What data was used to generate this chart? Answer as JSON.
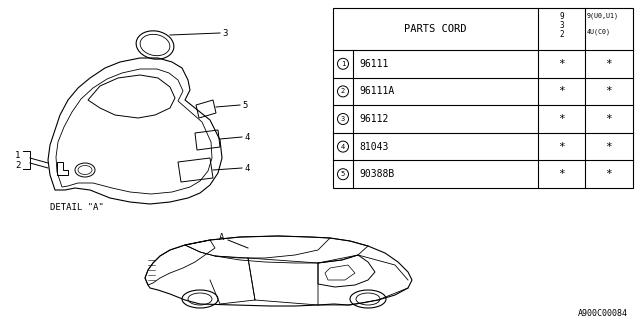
{
  "bg_color": "#ffffff",
  "table": {
    "title": "PARTS CORD",
    "rows": [
      {
        "num": "1",
        "code": "96111",
        "c1": "*",
        "c2": "*"
      },
      {
        "num": "2",
        "code": "96111A",
        "c1": "*",
        "c2": "*"
      },
      {
        "num": "3",
        "code": "96112",
        "c1": "*",
        "c2": "*"
      },
      {
        "num": "4",
        "code": "81043",
        "c1": "*",
        "c2": "*"
      },
      {
        "num": "5",
        "code": "90388B",
        "c1": "*",
        "c2": "*"
      }
    ]
  },
  "footer_code": "A900C00084",
  "detail_label": "DETAIL \"A\"",
  "car_label": "A"
}
